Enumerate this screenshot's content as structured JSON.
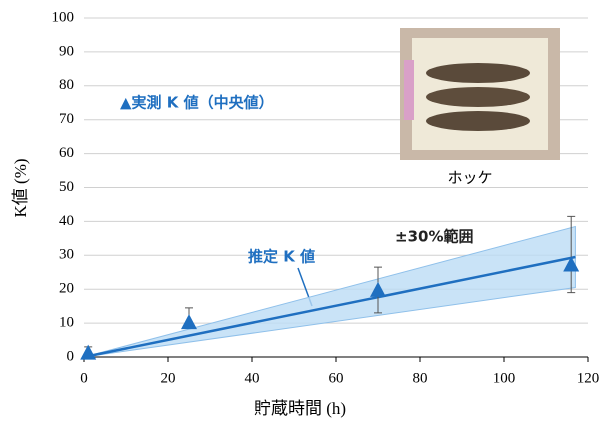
{
  "chart_data": {
    "type": "line",
    "x_label": "貯蔵時間 (h)",
    "y_label": "K値 (%)",
    "xlim": [
      0,
      120
    ],
    "xticks": [
      0,
      20,
      40,
      60,
      80,
      100,
      120
    ],
    "ylim": [
      0,
      100
    ],
    "yticks": [
      0,
      10,
      20,
      30,
      40,
      50,
      60,
      70,
      80,
      90,
      100
    ],
    "grid": true,
    "measured": {
      "color": "#1f6fc0",
      "x": [
        1,
        25,
        70,
        116
      ],
      "values": [
        1,
        10,
        19.5,
        27
      ],
      "upper": [
        3,
        14.5,
        26.5,
        41.5
      ],
      "lower": [
        0,
        10,
        13,
        19
      ]
    },
    "fit": {
      "color": "#1f6fc0",
      "x": [
        0,
        117
      ],
      "values": [
        0,
        29.5
      ]
    },
    "band": {
      "color": "#bcdcf5",
      "x": [
        0,
        117
      ],
      "upper": [
        0,
        38.5
      ],
      "lower": [
        0,
        20.5
      ]
    },
    "annotations": [
      "▲実測 K 値（中央値）",
      "推定 K 値",
      "±30%範囲",
      "ホッケ"
    ]
  }
}
